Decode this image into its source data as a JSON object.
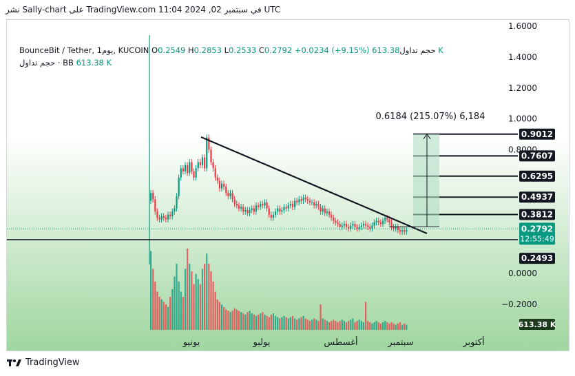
{
  "top_caption": "نشر Sally-chart على TradingView.com 11:04 2024 ,02 في سبتمبر UTC",
  "legend": {
    "symbol": "BounceBit / Tether, 1يوم, KUCOIN",
    "o_label": "O",
    "o_value": "0.2549",
    "h_label": "H",
    "h_value": "0.2853",
    "l_label": "L",
    "l_value": "0.2533",
    "c_label": "C",
    "c_value": "0.2792",
    "change": "+0.0234 (+9.15%)",
    "volume_label": "حجم تداول",
    "volume_value": "613.38 K",
    "volume_line_label": "حجم تداول · BB",
    "volume_line_value": "613.38 K"
  },
  "measure_label": "0.6184 (215.07%) 6,184",
  "current_price_tag": {
    "price": "0.2792",
    "countdown": "12:55:49"
  },
  "support_tag": "0.2493",
  "volume_tag": "613.38 K",
  "footer": {
    "brand": "TradingView"
  },
  "colors": {
    "up": "#089981",
    "down": "#f23645",
    "bg_top": "#ffffff",
    "bg_bottom": "#9fd69f"
  },
  "chart_data": {
    "type": "candlestick",
    "y_axis": {
      "ticks": [
        1.6,
        1.4,
        1.2,
        1.0,
        0.8,
        0.0,
        -0.2
      ],
      "tick_labels": [
        "1.6000",
        "1.4000",
        "1.2000",
        "1.0000",
        "0.8000",
        "0.0000",
        "−0.2000"
      ],
      "range": [
        -0.37,
        1.66
      ]
    },
    "x_axis": {
      "labels": [
        "يونيو",
        "يوليو",
        "أغسطس",
        "سبتمبر",
        "أكتوبر"
      ]
    },
    "price_levels": [
      0.9012,
      0.7607,
      0.6295,
      0.4937,
      0.3812
    ],
    "price_level_labels": [
      "0.9012",
      "0.7607",
      "0.6295",
      "0.4937",
      "0.3812"
    ],
    "support_level": 0.2493,
    "last_price": 0.2792,
    "candles_approx_close": [
      0.52,
      0.48,
      0.4,
      0.36,
      0.35,
      0.37,
      0.36,
      0.35,
      0.38,
      0.37,
      0.4,
      0.42,
      0.5,
      0.62,
      0.68,
      0.66,
      0.7,
      0.65,
      0.72,
      0.66,
      0.62,
      0.68,
      0.72,
      0.7,
      0.75,
      0.68,
      0.88,
      0.8,
      0.72,
      0.68,
      0.62,
      0.6,
      0.55,
      0.58,
      0.56,
      0.52,
      0.5,
      0.52,
      0.48,
      0.45,
      0.44,
      0.42,
      0.43,
      0.4,
      0.41,
      0.39,
      0.41,
      0.42,
      0.4,
      0.44,
      0.43,
      0.45,
      0.44,
      0.46,
      0.42,
      0.38,
      0.36,
      0.38,
      0.4,
      0.42,
      0.4,
      0.41,
      0.43,
      0.42,
      0.44,
      0.45,
      0.43,
      0.47,
      0.46,
      0.48,
      0.47,
      0.49,
      0.48,
      0.47,
      0.46,
      0.46,
      0.44,
      0.45,
      0.43,
      0.4,
      0.42,
      0.39,
      0.4,
      0.38,
      0.36,
      0.34,
      0.33,
      0.32,
      0.3,
      0.31,
      0.32,
      0.3,
      0.29,
      0.31,
      0.32,
      0.3,
      0.29,
      0.3,
      0.31,
      0.32,
      0.31,
      0.3,
      0.29,
      0.31,
      0.33,
      0.34,
      0.33,
      0.32,
      0.34,
      0.36,
      0.35,
      0.33,
      0.3,
      0.29,
      0.3,
      0.28,
      0.27,
      0.28,
      0.27,
      0.28
    ],
    "volume_approx": [
      620,
      480,
      380,
      300,
      260,
      240,
      220,
      200,
      180,
      260,
      320,
      420,
      520,
      380,
      300,
      260,
      480,
      640,
      520,
      460,
      360,
      440,
      400,
      360,
      480,
      520,
      600,
      520,
      460,
      380,
      300,
      240,
      220,
      200,
      180,
      160,
      150,
      140,
      150,
      170,
      160,
      150,
      140,
      130,
      120,
      140,
      150,
      130,
      120,
      110,
      120,
      130,
      140,
      120,
      110,
      100,
      120,
      130,
      110,
      100,
      90,
      100,
      110,
      100,
      90,
      100,
      110,
      90,
      80,
      90,
      100,
      110,
      90,
      80,
      70,
      80,
      90,
      80,
      70,
      200,
      90,
      80,
      70,
      60,
      70,
      80,
      70,
      60,
      70,
      80,
      70,
      60,
      70,
      80,
      90,
      60,
      70,
      80,
      70,
      60,
      220,
      70,
      60,
      50,
      60,
      70,
      60,
      50,
      60,
      70,
      60,
      50,
      60,
      50,
      40,
      50,
      60,
      40,
      50,
      40
    ]
  }
}
